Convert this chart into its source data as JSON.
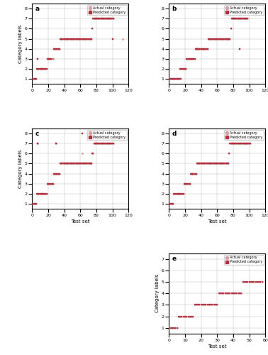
{
  "subplots": [
    "a",
    "b",
    "c",
    "d",
    "e"
  ],
  "xlabel": "Test set",
  "ylabel": "Category labels",
  "actual_color": "#d4a0a0",
  "predicted_color": "#b03040",
  "panels": {
    "a": {
      "xlim": [
        0,
        120
      ],
      "ylim": [
        0.5,
        8.5
      ],
      "yticks": [
        1,
        2,
        3,
        4,
        5,
        6,
        7,
        8
      ],
      "xticks": [
        0,
        20,
        40,
        60,
        80,
        100,
        120
      ],
      "clusters": [
        {
          "cat": 1,
          "x_start": 1,
          "x_end": 5
        },
        {
          "cat": 2,
          "x_start": 6,
          "x_end": 18
        },
        {
          "cat": 3,
          "x_start": 19,
          "x_end": 26
        },
        {
          "cat": 4,
          "x_start": 27,
          "x_end": 34
        },
        {
          "cat": 5,
          "x_start": 35,
          "x_end": 74
        },
        {
          "cat": 6,
          "x_start": 75,
          "x_end": 75
        },
        {
          "cat": 7,
          "x_start": 76,
          "x_end": 101
        },
        {
          "cat": 8,
          "x_start": 102,
          "x_end": 118
        }
      ],
      "outliers_actual": [
        {
          "x": 25,
          "cat": 3
        },
        {
          "x": 113,
          "cat": 5
        }
      ],
      "outliers_predicted": [
        {
          "x": 7,
          "cat": 3
        },
        {
          "x": 100,
          "cat": 5
        }
      ]
    },
    "b": {
      "xlim": [
        0,
        120
      ],
      "ylim": [
        0.5,
        8.5
      ],
      "yticks": [
        1,
        2,
        3,
        4,
        5,
        6,
        7,
        8
      ],
      "xticks": [
        0,
        20,
        40,
        60,
        80,
        100,
        120
      ],
      "clusters": [
        {
          "cat": 1,
          "x_start": 1,
          "x_end": 13
        },
        {
          "cat": 2,
          "x_start": 14,
          "x_end": 21
        },
        {
          "cat": 3,
          "x_start": 22,
          "x_end": 32
        },
        {
          "cat": 4,
          "x_start": 33,
          "x_end": 48
        },
        {
          "cat": 5,
          "x_start": 49,
          "x_end": 76
        },
        {
          "cat": 6,
          "x_start": 77,
          "x_end": 77
        },
        {
          "cat": 7,
          "x_start": 78,
          "x_end": 98
        },
        {
          "cat": 8,
          "x_start": 99,
          "x_end": 118
        }
      ],
      "outliers_actual": [],
      "outliers_predicted": [
        {
          "x": 15,
          "cat": 1
        },
        {
          "x": 35,
          "cat": 4
        },
        {
          "x": 88,
          "cat": 4
        }
      ]
    },
    "c": {
      "xlim": [
        0,
        120
      ],
      "ylim": [
        0.5,
        8.5
      ],
      "yticks": [
        1,
        2,
        3,
        4,
        5,
        6,
        7,
        8
      ],
      "xticks": [
        0,
        20,
        40,
        60,
        80,
        100,
        120
      ],
      "clusters": [
        {
          "cat": 1,
          "x_start": 1,
          "x_end": 5
        },
        {
          "cat": 2,
          "x_start": 6,
          "x_end": 18
        },
        {
          "cat": 3,
          "x_start": 19,
          "x_end": 26
        },
        {
          "cat": 4,
          "x_start": 27,
          "x_end": 34
        },
        {
          "cat": 5,
          "x_start": 35,
          "x_end": 74
        },
        {
          "cat": 6,
          "x_start": 75,
          "x_end": 76
        },
        {
          "cat": 7,
          "x_start": 77,
          "x_end": 101
        },
        {
          "cat": 8,
          "x_start": 102,
          "x_end": 118
        }
      ],
      "outliers_actual": [
        {
          "x": 7,
          "cat": 7
        },
        {
          "x": 30,
          "cat": 7
        },
        {
          "x": 62,
          "cat": 6
        },
        {
          "x": 110,
          "cat": 8
        }
      ],
      "outliers_predicted": [
        {
          "x": 7,
          "cat": 7
        },
        {
          "x": 30,
          "cat": 7
        },
        {
          "x": 62,
          "cat": 8
        },
        {
          "x": 110,
          "cat": 8
        }
      ]
    },
    "d": {
      "xlim": [
        0,
        120
      ],
      "ylim": [
        0.5,
        8.5
      ],
      "yticks": [
        1,
        2,
        3,
        4,
        5,
        6,
        7,
        8
      ],
      "xticks": [
        0,
        20,
        40,
        60,
        80,
        100,
        120
      ],
      "clusters": [
        {
          "cat": 1,
          "x_start": 1,
          "x_end": 5
        },
        {
          "cat": 2,
          "x_start": 6,
          "x_end": 18
        },
        {
          "cat": 3,
          "x_start": 19,
          "x_end": 26
        },
        {
          "cat": 4,
          "x_start": 27,
          "x_end": 34
        },
        {
          "cat": 5,
          "x_start": 35,
          "x_end": 74
        },
        {
          "cat": 6,
          "x_start": 75,
          "x_end": 75
        },
        {
          "cat": 7,
          "x_start": 76,
          "x_end": 101
        },
        {
          "cat": 8,
          "x_start": 102,
          "x_end": 118
        }
      ],
      "outliers_actual": [
        {
          "x": 30,
          "cat": 4
        }
      ],
      "outliers_predicted": [
        {
          "x": 30,
          "cat": 4
        }
      ]
    },
    "e": {
      "xlim": [
        0,
        60
      ],
      "ylim": [
        0.5,
        7.5
      ],
      "yticks": [
        1,
        2,
        3,
        4,
        5,
        6,
        7
      ],
      "xticks": [
        0,
        10,
        20,
        30,
        40,
        50,
        60
      ],
      "clusters": [
        {
          "cat": 1,
          "x_start": 1,
          "x_end": 5
        },
        {
          "cat": 2,
          "x_start": 6,
          "x_end": 15
        },
        {
          "cat": 3,
          "x_start": 16,
          "x_end": 30
        },
        {
          "cat": 4,
          "x_start": 31,
          "x_end": 45
        },
        {
          "cat": 5,
          "x_start": 46,
          "x_end": 58
        }
      ],
      "outliers_actual": [],
      "outliers_predicted": []
    }
  }
}
